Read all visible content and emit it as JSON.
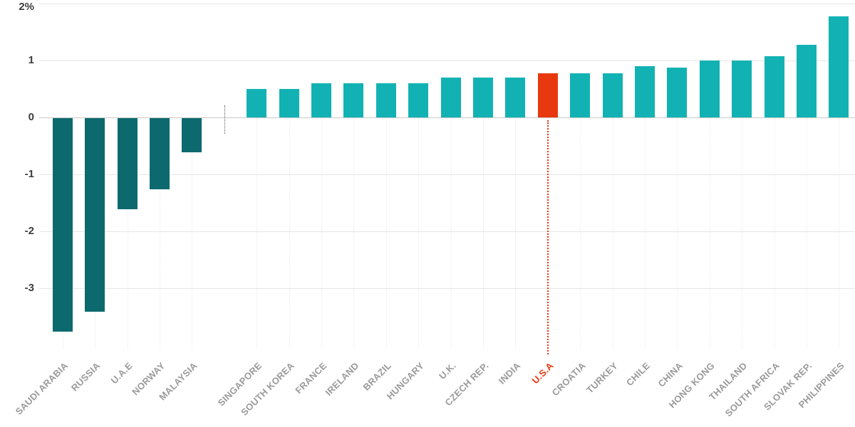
{
  "chart_data": {
    "type": "bar",
    "title": "",
    "value_unit": "%",
    "grid": "horizontal",
    "ylim": [
      -3.9,
      2.0
    ],
    "y_ticks": [
      {
        "value": 2,
        "label": "2%"
      },
      {
        "value": 1,
        "label": "1"
      },
      {
        "value": 0,
        "label": "0"
      },
      {
        "value": -1,
        "label": "-1"
      },
      {
        "value": -2,
        "label": "-2"
      },
      {
        "value": -3,
        "label": "-3"
      }
    ],
    "bars": [
      {
        "label": "SAUDI ARABIA",
        "value": -3.75,
        "color": "negative"
      },
      {
        "label": "RUSSIA",
        "value": -3.4,
        "color": "negative"
      },
      {
        "label": "U.A.E",
        "value": -1.6,
        "color": "negative"
      },
      {
        "label": "NORWAY",
        "value": -1.25,
        "color": "negative"
      },
      {
        "label": "MALAYSIA",
        "value": -0.6,
        "color": "negative"
      },
      {
        "label": "SINGAPORE",
        "value": 0.5,
        "color": "positive"
      },
      {
        "label": "SOUTH KOREA",
        "value": 0.5,
        "color": "positive"
      },
      {
        "label": "FRANCE",
        "value": 0.6,
        "color": "positive"
      },
      {
        "label": "IRELAND",
        "value": 0.6,
        "color": "positive"
      },
      {
        "label": "BRAZIL",
        "value": 0.6,
        "color": "positive"
      },
      {
        "label": "HUNGARY",
        "value": 0.6,
        "color": "positive"
      },
      {
        "label": "U.K.",
        "value": 0.7,
        "color": "positive"
      },
      {
        "label": "CZECH REP.",
        "value": 0.7,
        "color": "positive"
      },
      {
        "label": "INDIA",
        "value": 0.7,
        "color": "positive"
      },
      {
        "label": "U.S.A",
        "value": 0.78,
        "color": "highlight",
        "annotated": true
      },
      {
        "label": "CROATIA",
        "value": 0.78,
        "color": "positive"
      },
      {
        "label": "TURKEY",
        "value": 0.78,
        "color": "positive"
      },
      {
        "label": "CHILE",
        "value": 0.9,
        "color": "positive"
      },
      {
        "label": "CHINA",
        "value": 0.88,
        "color": "positive"
      },
      {
        "label": "HONG KONG",
        "value": 1.0,
        "color": "positive"
      },
      {
        "label": "THAILAND",
        "value": 1.0,
        "color": "positive"
      },
      {
        "label": "SOUTH AFRICA",
        "value": 1.07,
        "color": "positive"
      },
      {
        "label": "SLOVAK REP.",
        "value": 1.28,
        "color": "positive"
      },
      {
        "label": "PHILIPPINES",
        "value": 1.78,
        "color": "positive"
      }
    ],
    "colors": {
      "negative": "#0c6a6e",
      "positive": "#12b2b4",
      "highlight": "#e8380f"
    },
    "group_separator_after_index": 4
  }
}
